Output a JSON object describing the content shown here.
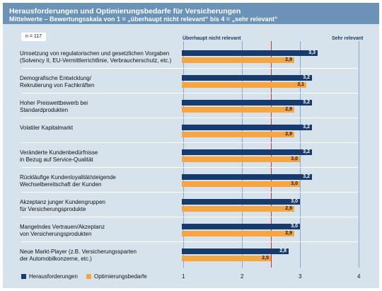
{
  "header": {
    "title": "Herausforderungen und Optimierungsbedarfe für Versicherungen",
    "subtitle": "Mittelwerte – Bewertungsskala von 1 = „überhaupt nicht relevant“ bis 4 = „sehr relevant“"
  },
  "sample": "n = 117",
  "scale_labels": {
    "low": "Überhaupt nicht relevant",
    "high": "Sehr relevant"
  },
  "colors": {
    "herausforderungen": "#173b6c",
    "optimierungsbedarfe": "#f7a541",
    "reference_line": "#d5322f",
    "header": "#6b93b7",
    "plot_bg": "#d7e3ec"
  },
  "chart_data": {
    "type": "bar",
    "orientation": "horizontal",
    "categories": [
      "Umsetzung von regulatorischen und gesetzlichen Vorgaben\n(Solvency II, EU-Vermittlerrichtlinie, Verbraucherschutz, etc.)",
      "Demografische Entwicklung/\nRekrutierung von Fachkräften",
      "Hoher Preiswettbewerb bei\nStandardprodukten",
      "Volatiler Kapitalmarkt",
      "Veränderte Kundenbedürfnisse\nin Bezug auf Service-Qualität",
      "Rückläufige Kundenloyalität/steigende\nWechselbereitschaft der Kunden",
      "Akzeptanz junger Kundengruppen\nfür Versicherungsprodukte",
      "Mangelndes Vertrauen/Akzeptanz\nvon Versicherungsprodukten",
      "Neue Markt-Player (z.B. Versicherungssparten\nder Automobilkonzerne, etc.)"
    ],
    "series": [
      {
        "name": "Herausforderungen",
        "values": [
          3.3,
          3.2,
          3.2,
          3.2,
          3.2,
          3.2,
          3.0,
          3.0,
          2.8
        ]
      },
      {
        "name": "Optimierungsbedarfe",
        "values": [
          2.9,
          3.1,
          2.9,
          2.9,
          3.0,
          3.0,
          2.9,
          2.9,
          2.5
        ]
      }
    ],
    "value_labels": [
      [
        "3,3",
        "3,2",
        "3,2",
        "3,2",
        "3,2",
        "3,2",
        "3,0",
        "3,0",
        "2,8"
      ],
      [
        "2,9",
        "3,1",
        "2,9",
        "2,9",
        "3,0",
        "3,0",
        "2,9",
        "2,9",
        "2,5"
      ]
    ],
    "xlim": [
      1,
      4
    ],
    "xticks": [
      "1",
      "2",
      "3",
      "4"
    ],
    "reference_value": 2.5,
    "grid": true,
    "legend": "bottom-left"
  }
}
